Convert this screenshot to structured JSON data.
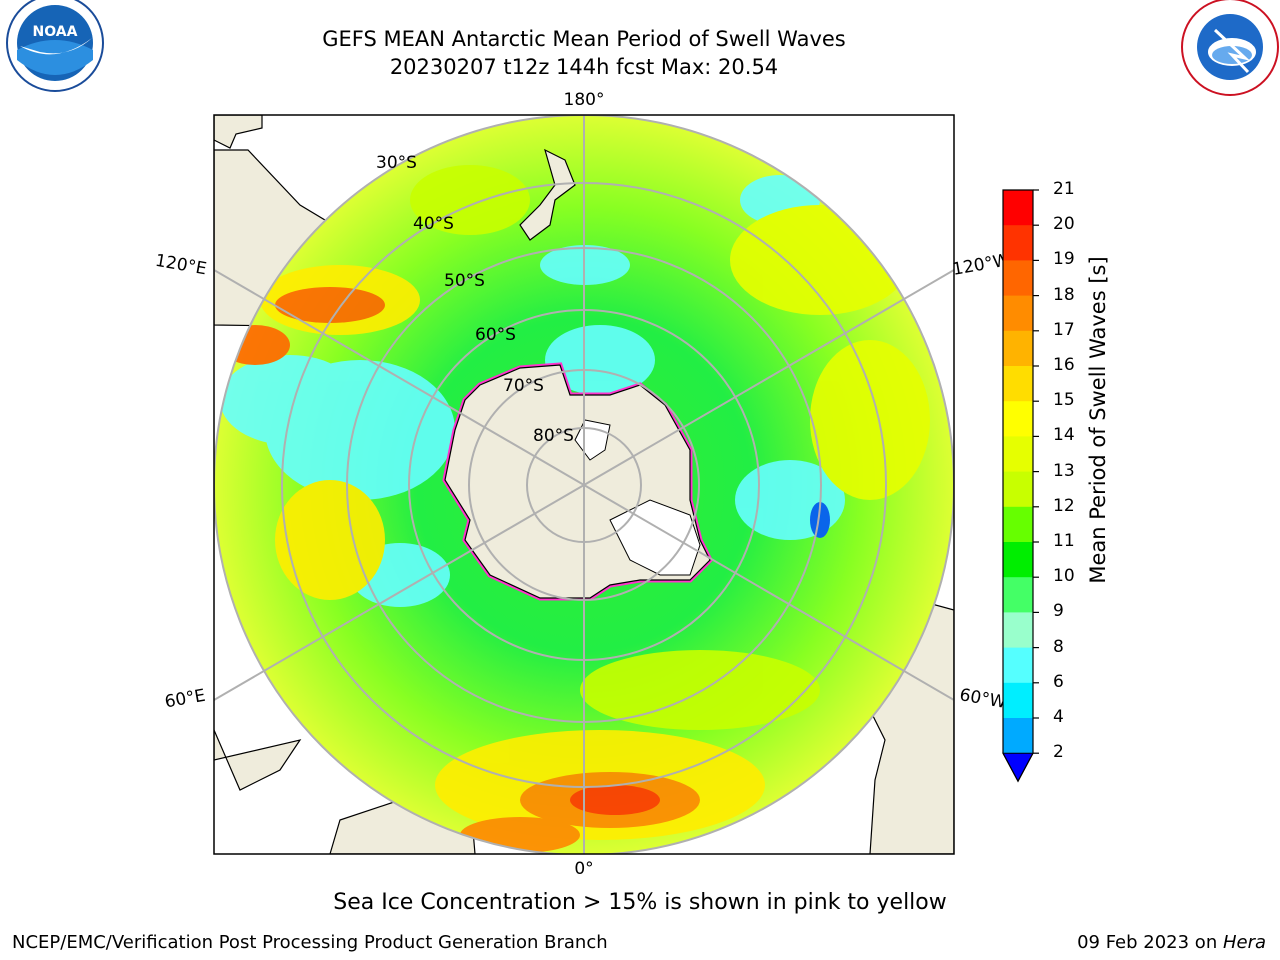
{
  "header": {
    "title_line1": "GEFS MEAN Antarctic Mean Period of Swell Waves",
    "title_line2": "20230207 t12z 144h fcst   Max: 20.54"
  },
  "logos": {
    "noaa": {
      "name": "noaa-logo",
      "text": "NOAA"
    },
    "nws": {
      "name": "nws-logo",
      "text": "NATIONAL WEATHER SERVICE"
    }
  },
  "map": {
    "projection": "south-polar-stereographic",
    "field": "Mean Period of Swell Waves",
    "max_value": 20.54,
    "lon_labels": {
      "top": "180°",
      "bottom": "0°",
      "upper_left": "120°E",
      "upper_right": "120°W",
      "lower_left": "60°E",
      "lower_right": "60°W"
    },
    "lat_labels": [
      "30°S",
      "40°S",
      "50°S",
      "60°S",
      "70°S",
      "80°S"
    ],
    "ice_note": "Sea Ice Concentration > 15% is shown in pink to yellow",
    "colors": {
      "land": "#efecdc",
      "graticule": "#b0b0b0",
      "ice_edge": "#ff33cc"
    }
  },
  "colorbar": {
    "title": "Mean Period of Swell Waves [s]",
    "ticks": [
      "21",
      "20",
      "19",
      "18",
      "17",
      "16",
      "15",
      "14",
      "13",
      "12",
      "11",
      "10",
      "9",
      "8",
      "6",
      "4",
      "2"
    ],
    "colors": [
      "#ff0000",
      "#ff3300",
      "#ff6600",
      "#ff8c00",
      "#ffb300",
      "#ffdd00",
      "#ffff00",
      "#e6ff00",
      "#c8ff00",
      "#66ff00",
      "#00ee00",
      "#44ff66",
      "#99ffcc",
      "#55ffff",
      "#00eeff",
      "#00aaff",
      "#0066ff"
    ],
    "extend_color": "#0000ff"
  },
  "footer": {
    "left": "NCEP/EMC/Verification Post Processing Product Generation Branch",
    "right_date": "09 Feb 2023 on ",
    "right_host": "Hera"
  }
}
